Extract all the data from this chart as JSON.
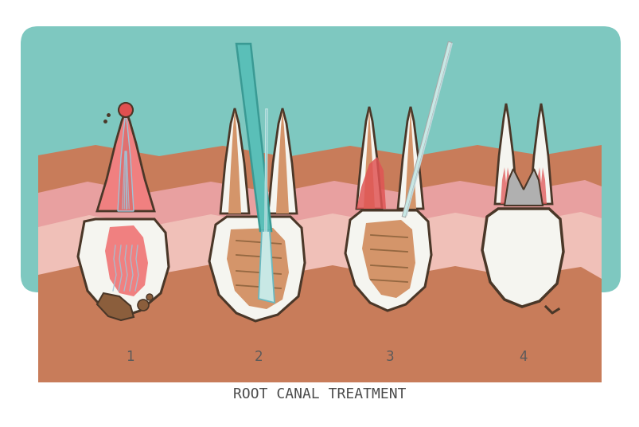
{
  "title": "ROOT CANAL TREATMENT",
  "bg_color": "#ffffff",
  "teal_bg": "#7ec8c0",
  "gum_pink": "#e8a0a0",
  "gum_light": "#f0b8b0",
  "gum_brown": "#c87c5a",
  "tooth_white": "#f5f5f0",
  "tooth_outline": "#4a3728",
  "decay_brown": "#8B5E3C",
  "pulp_pink": "#f08080",
  "canal_fill": "#d4956a",
  "nerve_blue": "#a0c4d8",
  "red_fill": "#e05555",
  "gray_fill": "#b0b0b0",
  "instrument_teal": "#5abfb8",
  "instrument_light": "#c8e8e5",
  "step_label_color": "#5a5a5a",
  "title_color": "#4a4a4a",
  "title_fontsize": 13,
  "step_label_fontsize": 12
}
